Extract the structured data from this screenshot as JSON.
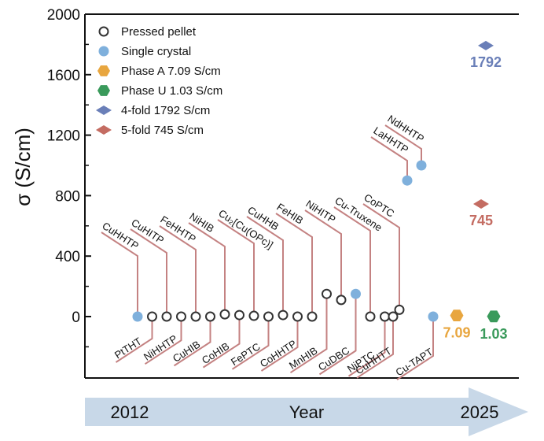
{
  "colors": {
    "line": "#c48282",
    "pressed_fill": "#ffffff",
    "pressed_stroke": "#333333",
    "single_crystal": "#7fb0dc",
    "phaseA": "#e8a63f",
    "phaseU": "#3a9a5b",
    "fourfold": "#6a7fb8",
    "fivefold": "#c46c62",
    "arrow": "#c8d8e8"
  },
  "chart_data": {
    "type": "scatter",
    "ylabel": "σ (S/cm)",
    "ylim": [
      -400,
      2000
    ],
    "yticks": [
      0,
      400,
      800,
      1200,
      1600,
      2000
    ],
    "grid": false,
    "legend_position": "top-left",
    "legend": [
      {
        "label": "Pressed pellet",
        "marker": "open-circle",
        "icon": "open-circle-icon"
      },
      {
        "label": "Single crystal",
        "marker": "filled-circle",
        "icon": "filled-circle-icon"
      },
      {
        "label": "Phase A 7.09 S/cm",
        "marker": "hexagon-orange",
        "icon": "hexagon-icon"
      },
      {
        "label": "Phase U 1.03 S/cm",
        "marker": "hexagon-green",
        "icon": "hexagon-icon"
      },
      {
        "label": "4-fold 1792 S/cm",
        "marker": "diamond-blue",
        "icon": "diamond-icon"
      },
      {
        "label": "5-fold 745 S/cm",
        "marker": "diamond-red",
        "icon": "diamond-icon"
      }
    ],
    "materials": [
      {
        "name": "CuHHTP",
        "type": "single",
        "value": 0,
        "label_pos": "up"
      },
      {
        "name": "PtTHT",
        "type": "pressed",
        "value": 0,
        "label_pos": "down"
      },
      {
        "name": "CuHITP",
        "type": "pressed",
        "value": 0,
        "label_pos": "up"
      },
      {
        "name": "NiHHTP",
        "type": "pressed",
        "value": 0,
        "label_pos": "down"
      },
      {
        "name": "FeHHTP",
        "type": "pressed",
        "value": 0,
        "label_pos": "up"
      },
      {
        "name": "CuHIB",
        "type": "pressed",
        "value": 0,
        "label_pos": "down"
      },
      {
        "name": "NiHIB",
        "type": "pressed",
        "value": 15,
        "label_pos": "up"
      },
      {
        "name": "CoHIB",
        "type": "pressed",
        "value": 10,
        "label_pos": "down"
      },
      {
        "name": "Cu₂[Cu(OPc)]",
        "type": "pressed",
        "value": 5,
        "label_pos": "up"
      },
      {
        "name": "FePTC",
        "type": "pressed",
        "value": 0,
        "label_pos": "down"
      },
      {
        "name": "CuHHB",
        "type": "pressed",
        "value": 10,
        "label_pos": "up"
      },
      {
        "name": "CoHHTP",
        "type": "pressed",
        "value": 0,
        "label_pos": "down"
      },
      {
        "name": "FeHIB",
        "type": "pressed",
        "value": 0,
        "label_pos": "up"
      },
      {
        "name": "MnHIB",
        "type": "pressed",
        "value": 150,
        "label_pos": "down"
      },
      {
        "name": "NiHITP",
        "type": "pressed",
        "value": 110,
        "label_pos": "up"
      },
      {
        "name": "CuDBC",
        "type": "single",
        "value": 150,
        "label_pos": "down"
      },
      {
        "name": "Cu-Truxene",
        "type": "pressed",
        "value": 0,
        "label_pos": "up"
      },
      {
        "name": "NiPTC",
        "type": "pressed",
        "value": 0,
        "label_pos": "down"
      },
      {
        "name": "CoPTC",
        "type": "pressed",
        "value": 45,
        "label_pos": "up"
      },
      {
        "name": "CuHHTT",
        "type": "pressed",
        "value": 0,
        "label_pos": "down"
      },
      {
        "name": "LaHHTP",
        "type": "single",
        "value": 900,
        "label_pos": "up"
      },
      {
        "name": "NdHHTP",
        "type": "single",
        "value": 1000,
        "label_pos": "up"
      },
      {
        "name": "Cu-TAPT",
        "type": "single",
        "value": 0,
        "label_pos": "down"
      }
    ],
    "special_points": [
      {
        "name": "Phase A",
        "shape": "hexagon",
        "color": "#e8a63f",
        "value": 7.09,
        "label": "7.09"
      },
      {
        "name": "Phase U",
        "shape": "hexagon",
        "color": "#3a9a5b",
        "value": 1.03,
        "label": "1.03"
      },
      {
        "name": "4-fold",
        "shape": "diamond",
        "color": "#6a7fb8",
        "value": 1792,
        "label": "1792"
      },
      {
        "name": "5-fold",
        "shape": "diamond",
        "color": "#c46c62",
        "value": 745,
        "label": "745"
      }
    ],
    "timeline": {
      "start": "2012",
      "end": "2025",
      "label": "Year"
    }
  }
}
